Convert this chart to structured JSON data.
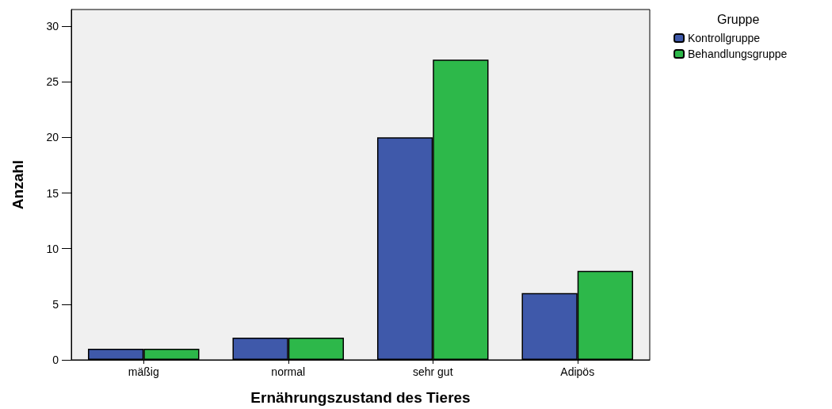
{
  "chart_data": {
    "type": "bar",
    "xlabel": "Ernährungszustand des Tieres",
    "ylabel": "Anzahl",
    "legend_title": "Gruppe",
    "categories": [
      "mäßig",
      "normal",
      "sehr gut",
      "Adipös"
    ],
    "series": [
      {
        "name": "Kontrollgruppe",
        "color": "#3f59aa",
        "values": [
          1,
          2,
          20,
          6
        ]
      },
      {
        "name": "Behandlungsgruppe",
        "color": "#2db84a",
        "values": [
          1,
          2,
          27,
          8
        ]
      }
    ],
    "ylim": [
      0,
      31.5
    ],
    "yticks": [
      0,
      5,
      10,
      15,
      20,
      25,
      30
    ],
    "grid": false,
    "legend": "top right"
  }
}
